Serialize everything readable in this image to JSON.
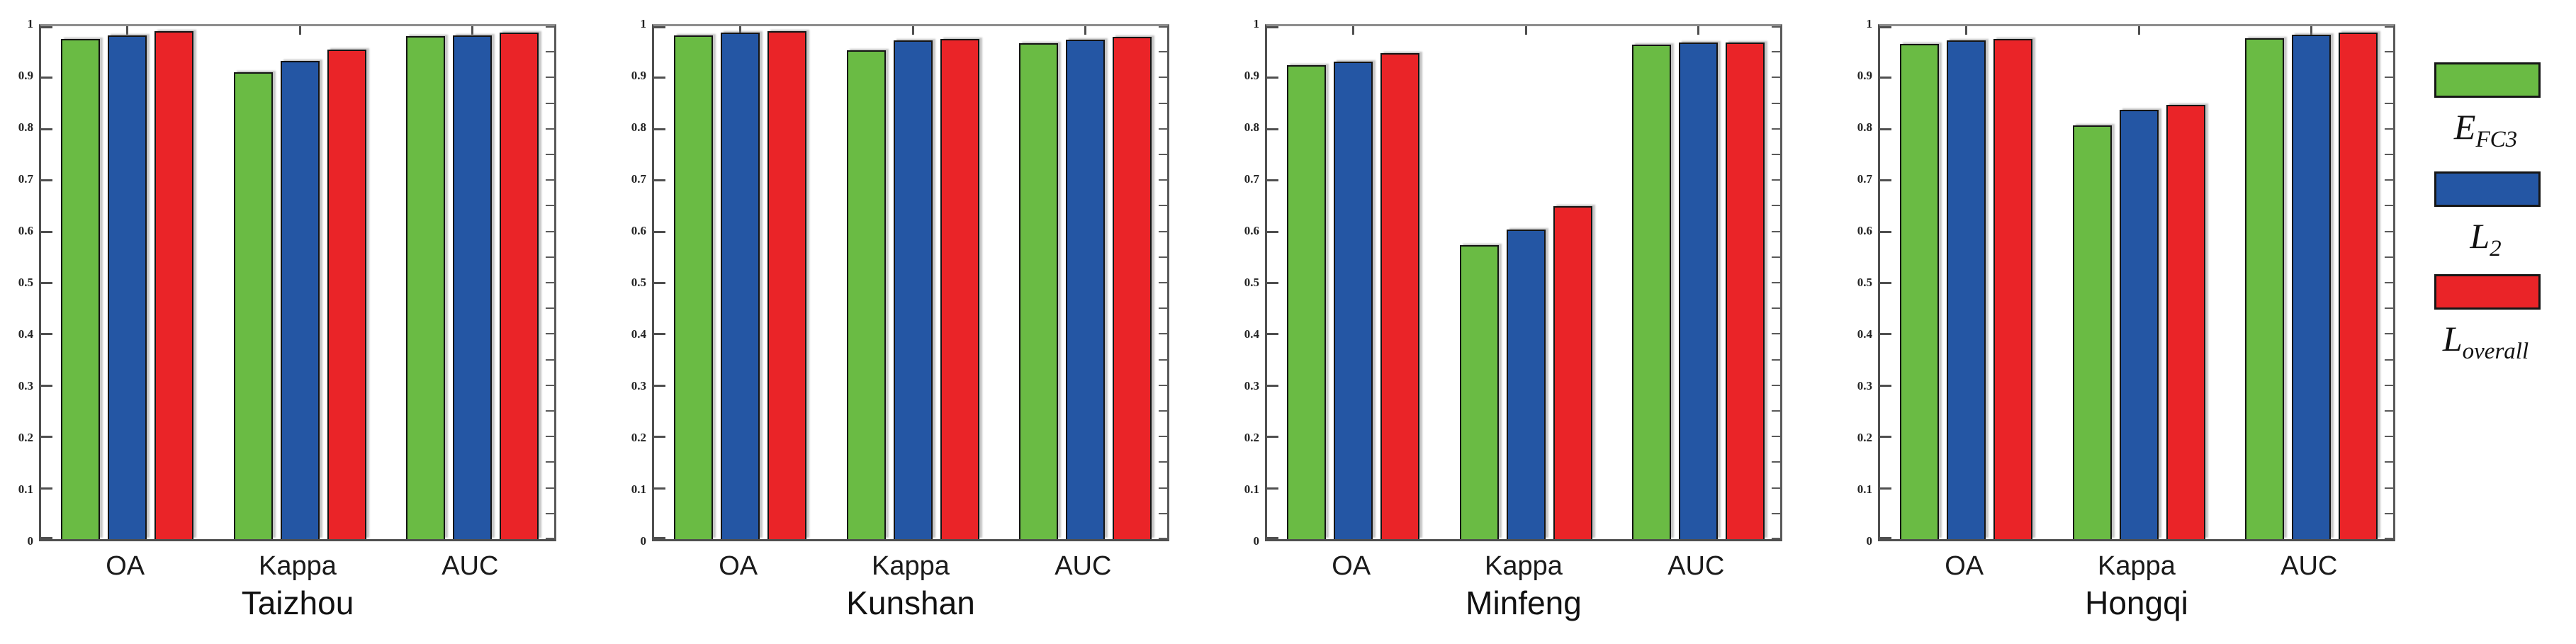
{
  "colors": {
    "green": "#6ABB44",
    "blue": "#2456A4",
    "red": "#EA2428",
    "frame": "#4f4f4f",
    "frame_top": "#8d8d8d",
    "tick": "#4f4f4f",
    "text": "#1a1a1a"
  },
  "axis": {
    "ymin": 0,
    "ymax": 1,
    "tick_step": 0.1,
    "y_tick_labels": [
      "1",
      "0.9",
      "0.8",
      "0.7",
      "0.6",
      "0.5",
      "0.4",
      "0.3",
      "0.2",
      "0.1",
      "0"
    ]
  },
  "legend": {
    "items": [
      {
        "symbol": "E",
        "subscript": "FC3",
        "series": "E_FC3",
        "color": "#6ABB44"
      },
      {
        "symbol": "L",
        "subscript": "2",
        "series": "L_2",
        "color": "#2456A4"
      },
      {
        "symbol": "L",
        "subscript": "overall",
        "series": "L_overall",
        "color": "#EA2428"
      }
    ]
  },
  "chart_data": [
    {
      "type": "bar",
      "title": "Taizhou",
      "categories": [
        "OA",
        "Kappa",
        "AUC"
      ],
      "ylim": [
        0,
        1
      ],
      "grid": false,
      "series": [
        {
          "name": "E_FC3",
          "color_key": "green",
          "values": [
            0.975,
            0.91,
            0.98
          ]
        },
        {
          "name": "L_2",
          "color_key": "blue",
          "values": [
            0.982,
            0.932,
            0.982
          ]
        },
        {
          "name": "L_overall",
          "color_key": "red",
          "values": [
            0.99,
            0.955,
            0.988
          ]
        }
      ]
    },
    {
      "type": "bar",
      "title": "Kunshan",
      "categories": [
        "OA",
        "Kappa",
        "AUC"
      ],
      "ylim": [
        0,
        1
      ],
      "grid": false,
      "series": [
        {
          "name": "E_FC3",
          "color_key": "green",
          "values": [
            0.982,
            0.953,
            0.967
          ]
        },
        {
          "name": "L_2",
          "color_key": "blue",
          "values": [
            0.988,
            0.972,
            0.974
          ]
        },
        {
          "name": "L_overall",
          "color_key": "red",
          "values": [
            0.99,
            0.975,
            0.979
          ]
        }
      ]
    },
    {
      "type": "bar",
      "title": "Minfeng",
      "categories": [
        "OA",
        "Kappa",
        "AUC"
      ],
      "ylim": [
        0,
        1
      ],
      "grid": false,
      "series": [
        {
          "name": "E_FC3",
          "color_key": "green",
          "values": [
            0.924,
            0.573,
            0.964
          ]
        },
        {
          "name": "L_2",
          "color_key": "blue",
          "values": [
            0.931,
            0.603,
            0.968
          ]
        },
        {
          "name": "L_overall",
          "color_key": "red",
          "values": [
            0.947,
            0.649,
            0.968
          ]
        }
      ]
    },
    {
      "type": "bar",
      "title": "Hongqi",
      "categories": [
        "OA",
        "Kappa",
        "AUC"
      ],
      "ylim": [
        0,
        1
      ],
      "grid": false,
      "series": [
        {
          "name": "E_FC3",
          "color_key": "green",
          "values": [
            0.965,
            0.806,
            0.977
          ]
        },
        {
          "name": "L_2",
          "color_key": "blue",
          "values": [
            0.972,
            0.837,
            0.984
          ]
        },
        {
          "name": "L_overall",
          "color_key": "red",
          "values": [
            0.975,
            0.847,
            0.988
          ]
        }
      ]
    }
  ]
}
